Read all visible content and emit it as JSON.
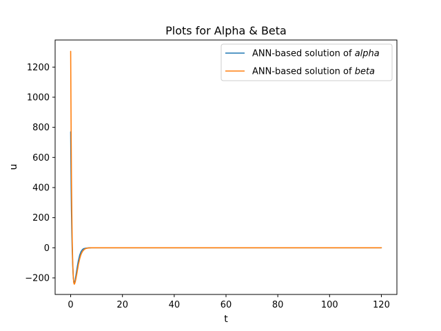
{
  "chart_data": {
    "type": "line",
    "title": "Plots for Alpha & Beta",
    "xlabel": "t",
    "ylabel": "u",
    "xlim": [
      -6,
      126
    ],
    "ylim": [
      -310,
      1380
    ],
    "xticks": [
      0,
      20,
      40,
      60,
      80,
      100,
      120
    ],
    "yticks": [
      -200,
      0,
      200,
      400,
      600,
      800,
      1000,
      1200
    ],
    "xtick_labels": [
      "0",
      "20",
      "40",
      "60",
      "80",
      "100",
      "120"
    ],
    "ytick_labels": [
      "−200",
      "0",
      "200",
      "400",
      "600",
      "800",
      "1000",
      "1200"
    ],
    "grid": false,
    "legend_position": "upper right",
    "series": [
      {
        "name_prefix": "ANN-based solution of ",
        "name_italic": "alpha",
        "color": "#1f77b4",
        "x": [
          0,
          0.1,
          0.2,
          0.3,
          0.45,
          0.6,
          0.8,
          1.0,
          1.2,
          1.4,
          1.6,
          1.8,
          2.0,
          2.3,
          2.6,
          3.0,
          3.5,
          4.0,
          4.5,
          5.0,
          6.0,
          7.0,
          8.0,
          10,
          15,
          20,
          40,
          60,
          80,
          100,
          120
        ],
        "y": [
          770,
          560,
          390,
          250,
          100,
          -10,
          -120,
          -190,
          -228,
          -236,
          -226,
          -210,
          -188,
          -155,
          -122,
          -84,
          -48,
          -26,
          -13,
          -6,
          -2,
          -0.5,
          0,
          0,
          0,
          0,
          0,
          0,
          0,
          0,
          0
        ]
      },
      {
        "name_prefix": "ANN-based solution of ",
        "name_italic": "beta",
        "color": "#ff7f0e",
        "x": [
          0,
          0.1,
          0.2,
          0.3,
          0.45,
          0.6,
          0.8,
          1.0,
          1.2,
          1.4,
          1.6,
          1.8,
          2.0,
          2.3,
          2.6,
          3.0,
          3.5,
          4.0,
          4.5,
          5.0,
          5.5,
          6.0,
          7.0,
          8.0,
          10,
          15,
          20,
          40,
          60,
          80,
          100,
          120
        ],
        "y": [
          1305,
          1000,
          720,
          480,
          230,
          50,
          -100,
          -190,
          -232,
          -242,
          -236,
          -224,
          -208,
          -180,
          -150,
          -110,
          -72,
          -44,
          -26,
          -15,
          -8,
          -4,
          -1,
          0,
          0,
          0,
          0,
          0,
          0,
          0,
          0,
          0
        ]
      }
    ]
  }
}
